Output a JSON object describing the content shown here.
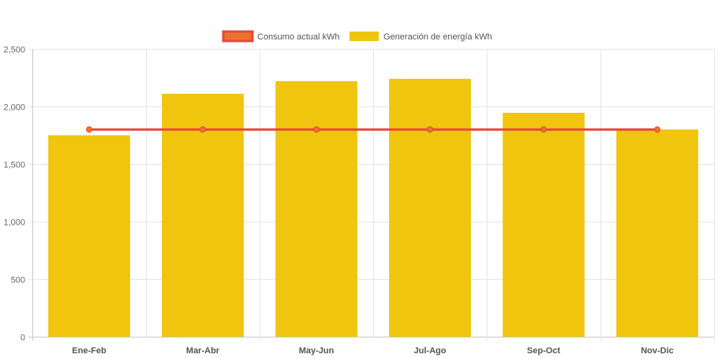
{
  "chart_data": {
    "type": "bar",
    "categories": [
      "Ene-Feb",
      "Mar-Abr",
      "May-Jun",
      "Jul-Ago",
      "Sep-Oct",
      "Nov-Dic"
    ],
    "series": [
      {
        "name": "Consumo actual kWh",
        "type": "line",
        "values": [
          1800,
          1800,
          1800,
          1800,
          1800,
          1800
        ],
        "color": "#e8473d",
        "point_color": "#e8742d"
      },
      {
        "name": "Generación de energía kWh",
        "type": "bar",
        "values": [
          1750,
          2110,
          2220,
          2240,
          1945,
          1800
        ],
        "color": "#f0c50e"
      }
    ],
    "y_ticks": [
      "0",
      "500",
      "1,000",
      "1,500",
      "2,000",
      "2,500"
    ],
    "ylim": [
      0,
      2500
    ],
    "grid": true,
    "legend_position": "top-center"
  }
}
